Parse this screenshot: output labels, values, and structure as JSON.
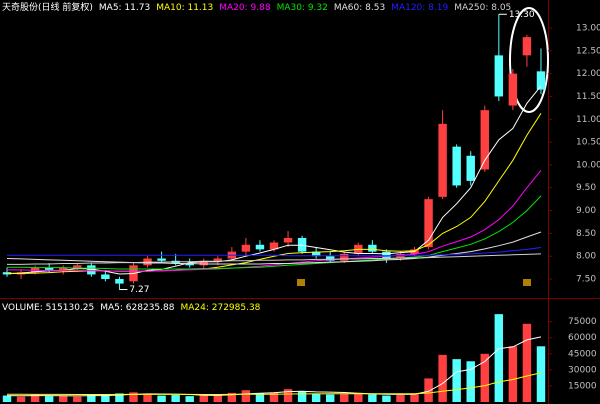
{
  "header": {
    "title": "天奇股份(日线 前复权)"
  },
  "chart_data": [
    {
      "type": "candlestick",
      "up_color": "#ff4040",
      "down_color": "#54ffff",
      "ylim": [
        7.15,
        13.35
      ],
      "yticks": [
        {
          "value": 7.5,
          "label": "7.50"
        },
        {
          "value": 8,
          "label": "8.00"
        },
        {
          "value": 8.5,
          "label": "8.50"
        },
        {
          "value": 9,
          "label": "9.00"
        },
        {
          "value": 9.5,
          "label": "9.50"
        },
        {
          "value": 10,
          "label": "10.00"
        },
        {
          "value": 10.5,
          "label": "10.50"
        },
        {
          "value": 11,
          "label": "11.00"
        },
        {
          "value": 11.5,
          "label": "11.50"
        },
        {
          "value": 12,
          "label": "12.00"
        },
        {
          "value": 12.5,
          "label": "12.50"
        },
        {
          "value": 13,
          "label": "13.00"
        }
      ],
      "open": [
        7.65,
        7.6,
        7.65,
        7.75,
        7.7,
        7.75,
        7.8,
        7.6,
        7.5,
        7.45,
        7.8,
        7.95,
        7.9,
        7.85,
        7.8,
        7.9,
        7.95,
        8.1,
        8.25,
        8.15,
        8.3,
        8.4,
        8.1,
        8.0,
        7.9,
        8.05,
        8.25,
        8.1,
        7.95,
        8.05,
        8.2,
        9.3,
        10.4,
        10.2,
        9.9,
        12.4,
        11.3,
        12.4,
        12.05
      ],
      "high": [
        7.75,
        7.7,
        7.8,
        7.85,
        7.8,
        7.85,
        7.85,
        7.7,
        7.55,
        7.85,
        8.0,
        8.1,
        8.05,
        7.95,
        7.95,
        8.0,
        8.2,
        8.4,
        8.35,
        8.35,
        8.55,
        8.45,
        8.2,
        8.1,
        8.1,
        8.3,
        8.35,
        8.15,
        8.1,
        8.2,
        9.3,
        11.2,
        10.45,
        10.3,
        11.3,
        13.3,
        12.1,
        12.85,
        12.55
      ],
      "low": [
        7.55,
        7.5,
        7.6,
        7.65,
        7.6,
        7.7,
        7.55,
        7.45,
        7.27,
        7.4,
        7.75,
        7.85,
        7.8,
        7.75,
        7.7,
        7.8,
        7.9,
        8.0,
        8.1,
        8.1,
        8.2,
        8.05,
        7.95,
        7.85,
        7.85,
        8.0,
        8.05,
        7.85,
        7.9,
        8.0,
        8.15,
        9.25,
        9.5,
        9.55,
        9.85,
        11.4,
        11.2,
        12.15,
        11.55
      ],
      "close": [
        7.6,
        7.65,
        7.75,
        7.7,
        7.75,
        7.8,
        7.6,
        7.5,
        7.4,
        7.8,
        7.95,
        7.9,
        7.85,
        7.8,
        7.9,
        7.95,
        8.1,
        8.25,
        8.15,
        8.3,
        8.4,
        8.1,
        8.0,
        7.9,
        8.05,
        8.25,
        8.1,
        7.95,
        8.05,
        8.15,
        9.25,
        10.9,
        9.55,
        9.65,
        11.2,
        11.5,
        12.0,
        12.8,
        11.65
      ],
      "annotations": [
        {
          "value": 13.3,
          "label": "13.30"
        },
        {
          "value": 7.27,
          "label": "7.27"
        }
      ],
      "series": [
        {
          "name": "MA5: 11.73",
          "color": "#ffffff",
          "values": [
            7.62,
            7.63,
            7.66,
            7.68,
            7.69,
            7.73,
            7.72,
            7.67,
            7.61,
            7.62,
            7.69,
            7.71,
            7.78,
            7.86,
            7.88,
            7.88,
            7.92,
            8.0,
            8.07,
            8.15,
            8.24,
            8.24,
            8.19,
            8.14,
            8.09,
            8.06,
            8.06,
            8.05,
            8.08,
            8.1,
            8.35,
            8.85,
            9.15,
            9.5,
            10.1,
            10.55,
            10.8,
            11.35,
            11.73
          ]
        },
        {
          "name": "MA10: 11.13",
          "color": "#ffff00",
          "values": [
            7.62,
            7.62,
            7.63,
            7.64,
            7.66,
            7.67,
            7.68,
            7.68,
            7.67,
            7.67,
            7.67,
            7.68,
            7.69,
            7.71,
            7.72,
            7.76,
            7.81,
            7.86,
            7.93,
            8.0,
            8.06,
            8.08,
            8.09,
            8.1,
            8.12,
            8.15,
            8.15,
            8.12,
            8.11,
            8.12,
            8.25,
            8.5,
            8.65,
            8.85,
            9.2,
            9.65,
            10.1,
            10.65,
            11.13
          ]
        },
        {
          "name": "MA20: 9.88",
          "color": "#ff00ff",
          "values": [
            7.7,
            7.7,
            7.69,
            7.69,
            7.69,
            7.69,
            7.68,
            7.68,
            7.67,
            7.67,
            7.67,
            7.68,
            7.69,
            7.7,
            7.71,
            7.72,
            7.74,
            7.76,
            7.78,
            7.81,
            7.84,
            7.87,
            7.9,
            7.92,
            7.94,
            7.96,
            7.98,
            8.0,
            8.02,
            8.04,
            8.1,
            8.22,
            8.32,
            8.42,
            8.58,
            8.8,
            9.1,
            9.5,
            9.88
          ]
        },
        {
          "name": "MA30: 9.32",
          "color": "#00e600",
          "values": [
            7.76,
            7.76,
            7.75,
            7.75,
            7.75,
            7.74,
            7.74,
            7.73,
            7.72,
            7.72,
            7.72,
            7.72,
            7.72,
            7.72,
            7.73,
            7.73,
            7.74,
            7.75,
            7.76,
            7.78,
            7.8,
            7.82,
            7.84,
            7.86,
            7.88,
            7.9,
            7.92,
            7.94,
            7.96,
            7.98,
            8.02,
            8.1,
            8.18,
            8.26,
            8.38,
            8.54,
            8.74,
            9.0,
            9.32
          ]
        },
        {
          "name": "MA60: 8.53",
          "color": "#e0e0e0",
          "values": [
            7.95,
            7.94,
            7.93,
            7.92,
            7.91,
            7.9,
            7.89,
            7.88,
            7.87,
            7.86,
            7.85,
            7.85,
            7.84,
            7.84,
            7.83,
            7.83,
            7.83,
            7.83,
            7.83,
            7.84,
            7.84,
            7.85,
            7.86,
            7.87,
            7.88,
            7.89,
            7.9,
            7.92,
            7.93,
            7.95,
            7.98,
            8.02,
            8.06,
            8.1,
            8.16,
            8.23,
            8.31,
            8.42,
            8.53
          ]
        },
        {
          "name": "MA120: 8.19",
          "color": "#2020ff",
          "values": [
            8.02,
            8.02,
            8.02,
            8.02,
            8.02,
            8.02,
            8.02,
            8.02,
            8.02,
            8.02,
            8.02,
            8.02,
            8.02,
            8.02,
            8.02,
            8.02,
            8.02,
            8.02,
            8.02,
            8.02,
            8.01,
            8.01,
            8.01,
            8.01,
            8.01,
            8.01,
            8.01,
            8.01,
            8.01,
            8.01,
            8.02,
            8.03,
            8.04,
            8.05,
            8.07,
            8.09,
            8.12,
            8.15,
            8.19
          ]
        },
        {
          "name": "MA250: 8.05",
          "color": "#cfcfcf",
          "values": [
            7.82,
            7.82,
            7.83,
            7.83,
            7.84,
            7.84,
            7.85,
            7.85,
            7.86,
            7.86,
            7.87,
            7.87,
            7.88,
            7.88,
            7.89,
            7.89,
            7.9,
            7.9,
            7.91,
            7.91,
            7.92,
            7.92,
            7.93,
            7.93,
            7.94,
            7.94,
            7.95,
            7.95,
            7.96,
            7.96,
            7.97,
            7.98,
            7.99,
            8.0,
            8.01,
            8.02,
            8.03,
            8.04,
            8.05
          ]
        }
      ]
    },
    {
      "type": "bar",
      "title": "VOLUME: 515130.25",
      "ylim": [
        0,
        84000
      ],
      "yticks": [
        15000,
        30000,
        45000,
        60000,
        75000
      ],
      "values": [
        6000,
        5000,
        7000,
        5500,
        6000,
        5000,
        6500,
        7000,
        8000,
        9000,
        7500,
        6000,
        6500,
        5500,
        6000,
        7000,
        8500,
        11000,
        8000,
        9000,
        12000,
        10000,
        8000,
        7000,
        7500,
        8500,
        7000,
        6000,
        6500,
        8000,
        22000,
        44000,
        40000,
        38000,
        45000,
        82000,
        52000,
        73000,
        52000
      ],
      "series": [
        {
          "name": "MA5: 628235.88",
          "color": "#ffffff",
          "values": [
            6000,
            5800,
            6000,
            6000,
            5900,
            5700,
            6000,
            6000,
            6500,
            7100,
            7600,
            7500,
            7400,
            7000,
            6300,
            6200,
            6700,
            7600,
            8100,
            8700,
            9700,
            10000,
            9400,
            9200,
            8900,
            8200,
            7600,
            7200,
            7100,
            7200,
            10000,
            17300,
            28100,
            30400,
            37800,
            49800,
            51400,
            58000,
            60800
          ]
        },
        {
          "name": "MA24: 272985.38",
          "color": "#ffff00",
          "values": [
            7200,
            7150,
            7100,
            7100,
            7050,
            7000,
            7000,
            7000,
            7050,
            7100,
            7100,
            7100,
            7100,
            7050,
            7000,
            7000,
            7050,
            7200,
            7250,
            7300,
            7450,
            7550,
            7600,
            7650,
            7700,
            7750,
            7750,
            7700,
            7700,
            7750,
            8400,
            10000,
            11600,
            13200,
            15300,
            18800,
            21000,
            24300,
            27300
          ]
        }
      ]
    }
  ]
}
